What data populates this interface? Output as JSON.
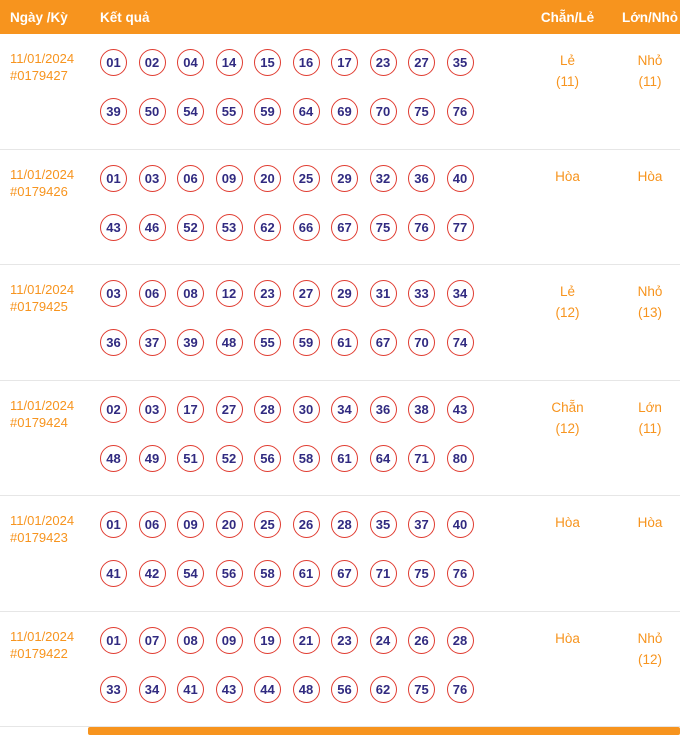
{
  "colors": {
    "accent_orange": "#f7941e",
    "ball_border_red": "#e03c31",
    "ball_text_navy": "#302a80",
    "row_divider": "#e6e6e6"
  },
  "header": {
    "col_date": "Ngày /Kỳ",
    "col_result": "Kết quả",
    "col_evenodd": "Chẵn/Lẻ",
    "col_bigsmall": "Lớn/Nhỏ"
  },
  "rows": [
    {
      "date": "11/01/2024",
      "id": "#0179427",
      "numbers_line1": [
        "01",
        "02",
        "04",
        "14",
        "15",
        "16",
        "17",
        "23",
        "27",
        "35"
      ],
      "numbers_line2": [
        "39",
        "50",
        "54",
        "55",
        "59",
        "64",
        "69",
        "70",
        "75",
        "76"
      ],
      "even_odd": "Lẻ",
      "even_odd_count": "(11)",
      "big_small": "Nhỏ",
      "big_small_count": "(11)"
    },
    {
      "date": "11/01/2024",
      "id": "#0179426",
      "numbers_line1": [
        "01",
        "03",
        "06",
        "09",
        "20",
        "25",
        "29",
        "32",
        "36",
        "40"
      ],
      "numbers_line2": [
        "43",
        "46",
        "52",
        "53",
        "62",
        "66",
        "67",
        "75",
        "76",
        "77"
      ],
      "even_odd": "Hòa",
      "even_odd_count": "",
      "big_small": "Hòa",
      "big_small_count": ""
    },
    {
      "date": "11/01/2024",
      "id": "#0179425",
      "numbers_line1": [
        "03",
        "06",
        "08",
        "12",
        "23",
        "27",
        "29",
        "31",
        "33",
        "34"
      ],
      "numbers_line2": [
        "36",
        "37",
        "39",
        "48",
        "55",
        "59",
        "61",
        "67",
        "70",
        "74"
      ],
      "even_odd": "Lẻ",
      "even_odd_count": "(12)",
      "big_small": "Nhỏ",
      "big_small_count": "(13)"
    },
    {
      "date": "11/01/2024",
      "id": "#0179424",
      "numbers_line1": [
        "02",
        "03",
        "17",
        "27",
        "28",
        "30",
        "34",
        "36",
        "38",
        "43"
      ],
      "numbers_line2": [
        "48",
        "49",
        "51",
        "52",
        "56",
        "58",
        "61",
        "64",
        "71",
        "80"
      ],
      "even_odd": "Chẵn",
      "even_odd_count": "(12)",
      "big_small": "Lớn",
      "big_small_count": "(11)"
    },
    {
      "date": "11/01/2024",
      "id": "#0179423",
      "numbers_line1": [
        "01",
        "06",
        "09",
        "20",
        "25",
        "26",
        "28",
        "35",
        "37",
        "40"
      ],
      "numbers_line2": [
        "41",
        "42",
        "54",
        "56",
        "58",
        "61",
        "67",
        "71",
        "75",
        "76"
      ],
      "even_odd": "Hòa",
      "even_odd_count": "",
      "big_small": "Hòa",
      "big_small_count": ""
    },
    {
      "date": "11/01/2024",
      "id": "#0179422",
      "numbers_line1": [
        "01",
        "07",
        "08",
        "09",
        "19",
        "21",
        "23",
        "24",
        "26",
        "28"
      ],
      "numbers_line2": [
        "33",
        "34",
        "41",
        "43",
        "44",
        "48",
        "56",
        "62",
        "75",
        "76"
      ],
      "even_odd": "Hòa",
      "even_odd_count": "",
      "big_small": "Nhỏ",
      "big_small_count": "(12)"
    }
  ]
}
